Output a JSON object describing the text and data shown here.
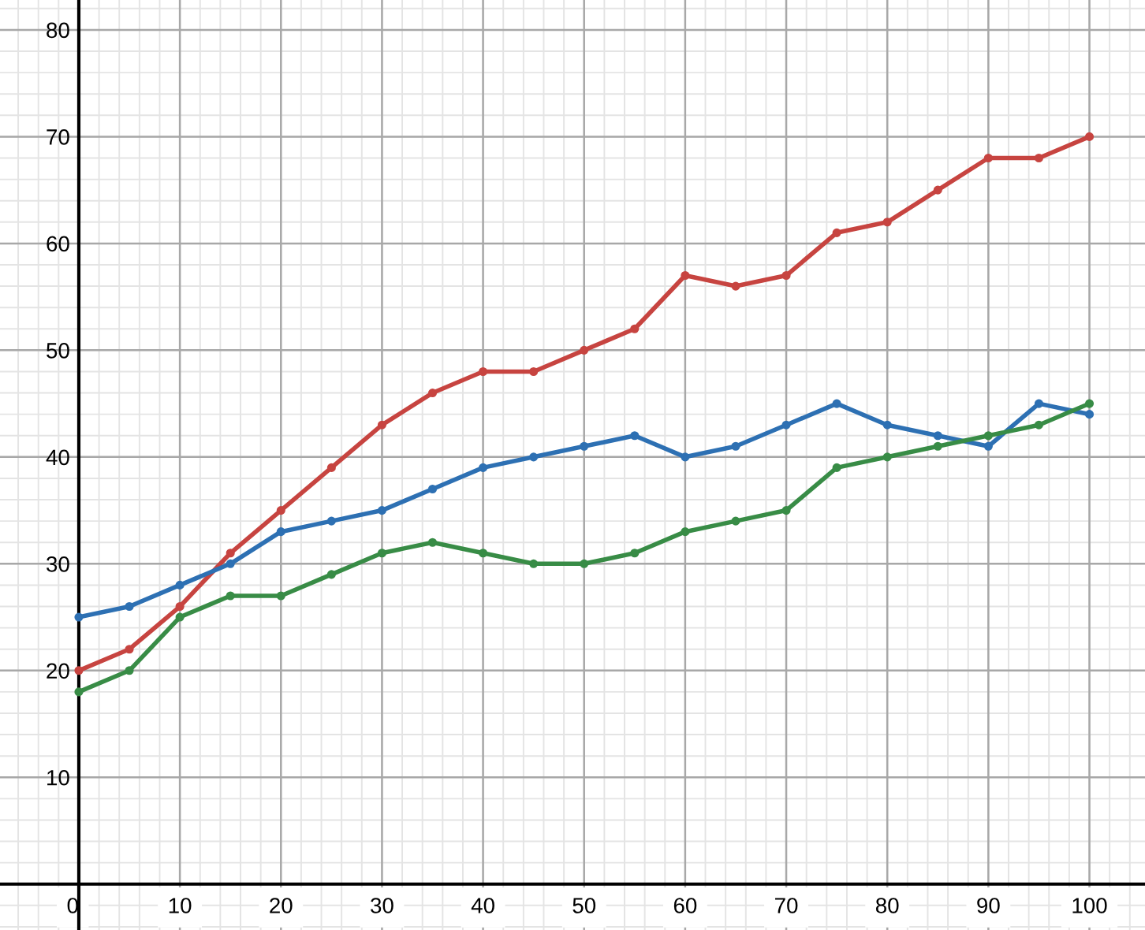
{
  "chart_data": {
    "type": "line",
    "x": [
      0,
      5,
      10,
      15,
      20,
      25,
      30,
      35,
      40,
      45,
      50,
      55,
      60,
      65,
      70,
      75,
      80,
      85,
      90,
      95,
      100
    ],
    "series": [
      {
        "color": "#c74440",
        "values": [
          20,
          22,
          26,
          31,
          35,
          39,
          43,
          46,
          48,
          48,
          50,
          52,
          57,
          56,
          57,
          61,
          62,
          65,
          68,
          68,
          70
        ]
      },
      {
        "color": "#2d70b3",
        "values": [
          25,
          26,
          28,
          30,
          33,
          34,
          35,
          37,
          39,
          40,
          41,
          42,
          40,
          41,
          43,
          45,
          43,
          42,
          41,
          45,
          44
        ]
      },
      {
        "color": "#388c46",
        "values": [
          18,
          20,
          25,
          27,
          27,
          29,
          31,
          32,
          31,
          30,
          30,
          31,
          33,
          34,
          35,
          39,
          40,
          41,
          42,
          43,
          45
        ]
      }
    ],
    "xlim": [
      -7.8,
      105.5
    ],
    "ylim": [
      -4.3,
      82.8
    ],
    "xticks": [
      0,
      10,
      20,
      30,
      40,
      50,
      60,
      70,
      80,
      90,
      100
    ],
    "yticks": [
      10,
      20,
      30,
      40,
      50,
      60,
      70,
      80
    ],
    "grid": true,
    "marker": "circle",
    "line_style": "solid"
  }
}
